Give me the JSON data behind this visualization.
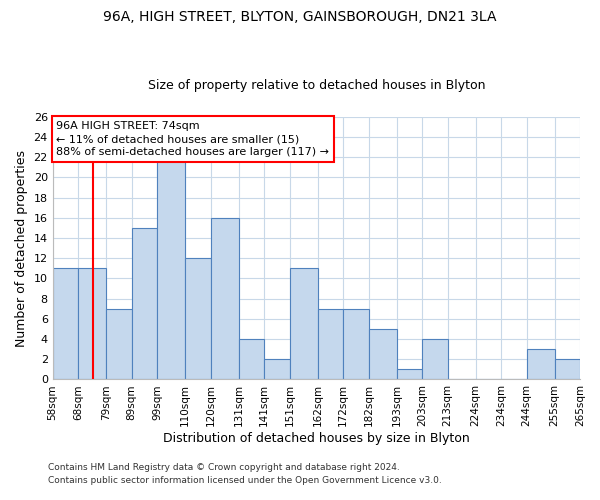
{
  "title": "96A, HIGH STREET, BLYTON, GAINSBOROUGH, DN21 3LA",
  "subtitle": "Size of property relative to detached houses in Blyton",
  "xlabel": "Distribution of detached houses by size in Blyton",
  "ylabel": "Number of detached properties",
  "footer1": "Contains HM Land Registry data © Crown copyright and database right 2024.",
  "footer2": "Contains public sector information licensed under the Open Government Licence v3.0.",
  "bin_edges": [
    58,
    68,
    79,
    89,
    99,
    110,
    120,
    131,
    141,
    151,
    162,
    172,
    182,
    193,
    203,
    213,
    224,
    234,
    244,
    255,
    265
  ],
  "bin_labels": [
    "58sqm",
    "68sqm",
    "79sqm",
    "89sqm",
    "99sqm",
    "110sqm",
    "120sqm",
    "131sqm",
    "141sqm",
    "151sqm",
    "162sqm",
    "172sqm",
    "182sqm",
    "193sqm",
    "203sqm",
    "213sqm",
    "224sqm",
    "234sqm",
    "244sqm",
    "255sqm",
    "265sqm"
  ],
  "counts": [
    11,
    11,
    7,
    15,
    22,
    12,
    16,
    4,
    2,
    11,
    7,
    7,
    5,
    1,
    4,
    0,
    0,
    0,
    3,
    2
  ],
  "bar_color": "#c5d8ed",
  "bar_edge_color": "#4f81bd",
  "red_line_x": 74,
  "ylim": [
    0,
    26
  ],
  "yticks": [
    0,
    2,
    4,
    6,
    8,
    10,
    12,
    14,
    16,
    18,
    20,
    22,
    24,
    26
  ],
  "ann_line1": "96A HIGH STREET: 74sqm",
  "ann_line2": "← 11% of detached houses are smaller (15)",
  "ann_line3": "88% of semi-detached houses are larger (117) →",
  "grid_color": "#c8d8e8",
  "background_color": "#ffffff",
  "title_fontsize": 10,
  "subtitle_fontsize": 9,
  "ylabel_fontsize": 9,
  "xlabel_fontsize": 9,
  "ytick_fontsize": 8,
  "xtick_fontsize": 7.5,
  "ann_fontsize": 8,
  "footer_fontsize": 6.5
}
